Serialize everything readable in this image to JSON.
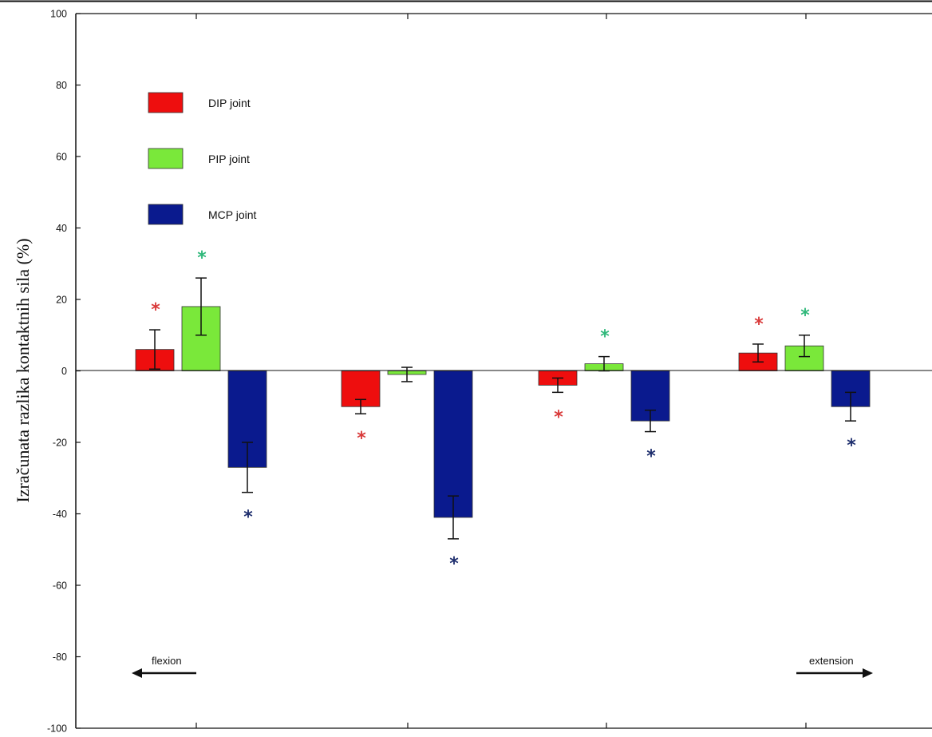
{
  "colors": {
    "dip": "#ee0e0e",
    "pip": "#7ae83a",
    "mcp": "#0a1a8e",
    "star_dip": "#d93a3a",
    "star_pip": "#2fb87a",
    "star_mcp": "#1f2f6e"
  },
  "chart_data": {
    "type": "bar",
    "ylabel": "Izračunata razlika kontaktnih sila (%)",
    "ylim": [
      -100,
      100
    ],
    "yticks": [
      100,
      80,
      60,
      40,
      20,
      0,
      -20,
      -40,
      -60,
      -80,
      -100
    ],
    "grid": false,
    "legend_position": "top-left",
    "group_count": 4,
    "series": [
      {
        "name": "DIP joint",
        "color_key": "dip",
        "values": [
          6,
          -10,
          -4,
          5
        ],
        "errors": [
          5.5,
          2,
          2,
          2.5
        ],
        "significant": [
          true,
          true,
          true,
          true
        ]
      },
      {
        "name": "PIP joint",
        "color_key": "pip",
        "values": [
          18,
          -1,
          2,
          7
        ],
        "errors": [
          8,
          2,
          2,
          3
        ],
        "significant": [
          true,
          false,
          true,
          true
        ]
      },
      {
        "name": "MCP joint",
        "color_key": "mcp",
        "values": [
          -27,
          -41,
          -14,
          -10
        ],
        "errors": [
          7,
          6,
          3,
          4
        ],
        "significant": [
          true,
          true,
          true,
          true
        ]
      }
    ],
    "annotations": {
      "flexion": "flexion",
      "extension": "extension"
    },
    "significance_marker": "*"
  }
}
